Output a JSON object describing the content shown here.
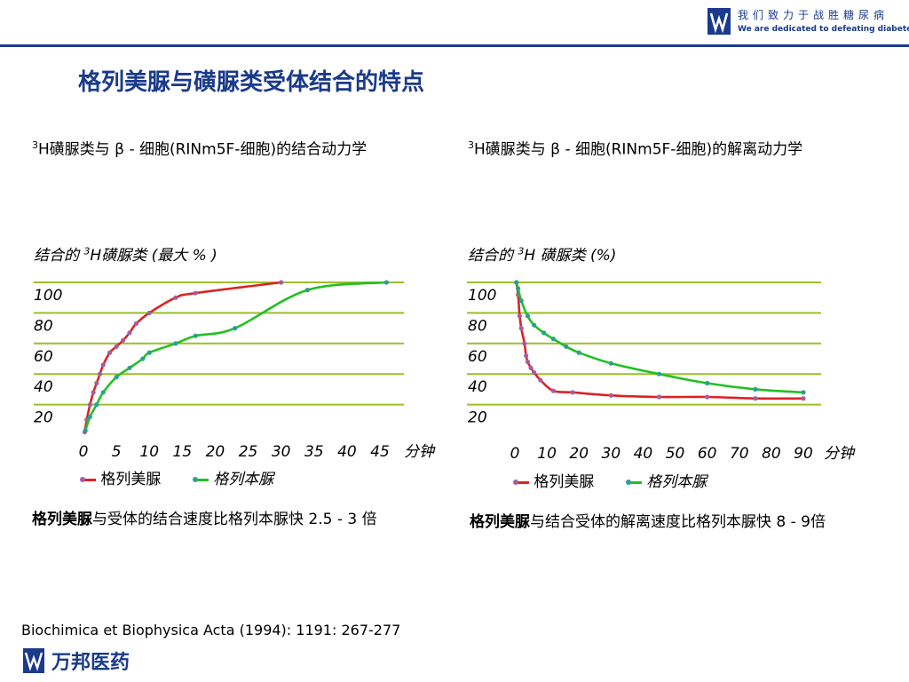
{
  "header": {
    "slogan_cn": "我们致力于战胜糖尿病",
    "slogan_en": "We are dedicated to defeating diabetes",
    "brand_color": "#1a3a8c"
  },
  "title": "格列美脲与磺脲类受体结合的特点",
  "left": {
    "title_prefix": "3",
    "title_text": "H磺脲类与 β - 细胞(RINm5F-细胞)的结合动力学",
    "ylabel_pre": "结合的 ",
    "ylabel_sup": "3",
    "ylabel_post": "H磺脲类 (最大 % )",
    "legend_a": "格列美脲",
    "legend_b": "格列本脲",
    "conclusion_bold": "格列美脲",
    "conclusion_rest": "与受体的结合速度比格列本脲快 2.5 - 3 倍"
  },
  "right": {
    "title_prefix": "3",
    "title_text": "H磺脲类与 β - 细胞(RINm5F-细胞)的解离动力学",
    "ylabel_pre": "结合的 ",
    "ylabel_sup": "3",
    "ylabel_post": "H 磺脲类 (%)",
    "legend_a": "格列美脲",
    "legend_b": "格列本脲",
    "conclusion_bold": "格列美脲",
    "conclusion_rest": "与结合受体的解离速度比格列本脲快 8 - 9倍"
  },
  "citation": "Biochimica et Biophysica Acta (1994): 1191: 267-277",
  "company": "万邦医药",
  "chart_data": [
    {
      "type": "line",
      "title": "",
      "xlabel": "分钟",
      "ylabel": "结合的 3H磺脲类 (最大 % )",
      "x_ticks": [
        "0",
        "5",
        "10",
        "15",
        "20",
        "25",
        "30",
        "35",
        "40",
        "45"
      ],
      "y_ticks": [
        "20",
        "40",
        "60",
        "80",
        "100"
      ],
      "xlim": [
        0,
        45
      ],
      "ylim": [
        0,
        100
      ],
      "grid": true,
      "colors": {
        "glimepiride_line": "#dd2222",
        "glyburide_line": "#22c022",
        "glimepiride_points": "#a060a0",
        "glyburide_points": "#2aa090",
        "grid": "#9cbf2a"
      },
      "series": [
        {
          "name": "格列美脲",
          "curve": "#dd2222",
          "points": [
            [
              0.2,
              2
            ],
            [
              0.5,
              10
            ],
            [
              1,
              20
            ],
            [
              1.5,
              28
            ],
            [
              2,
              34
            ],
            [
              2.5,
              40
            ],
            [
              3,
              46
            ],
            [
              4,
              54
            ],
            [
              5,
              58
            ],
            [
              6,
              62
            ],
            [
              7,
              67
            ],
            [
              8,
              73
            ],
            [
              10,
              80
            ],
            [
              14,
              90
            ],
            [
              17,
              93
            ],
            [
              30,
              100
            ]
          ]
        },
        {
          "name": "格列本脲",
          "curve": "#22c022",
          "points": [
            [
              0.3,
              3
            ],
            [
              1,
              12
            ],
            [
              2,
              20
            ],
            [
              3,
              28
            ],
            [
              5,
              38
            ],
            [
              7,
              44
            ],
            [
              9,
              50
            ],
            [
              10,
              54
            ],
            [
              14,
              60
            ],
            [
              17,
              65
            ],
            [
              23,
              70
            ],
            [
              34,
              95
            ],
            [
              46,
              100
            ]
          ]
        }
      ]
    },
    {
      "type": "line",
      "title": "",
      "xlabel": "分钟",
      "ylabel": "结合的 3H 磺脲类 (%)",
      "x_ticks": [
        "0",
        "10",
        "20",
        "30",
        "40",
        "50",
        "60",
        "70",
        "80",
        "90"
      ],
      "y_ticks": [
        "20",
        "40",
        "60",
        "80",
        "100"
      ],
      "xlim": [
        0,
        90
      ],
      "ylim": [
        0,
        100
      ],
      "grid": true,
      "colors": {
        "glimepiride_line": "#dd2222",
        "glyburide_line": "#22c022",
        "glimepiride_points": "#a060a0",
        "glyburide_points": "#2aa090",
        "grid": "#9cbf2a"
      },
      "series": [
        {
          "name": "格列美脲",
          "curve": "#dd2222",
          "points": [
            [
              0.5,
              100
            ],
            [
              1,
              92
            ],
            [
              1.5,
              78
            ],
            [
              2,
              70
            ],
            [
              3,
              60
            ],
            [
              3.5,
              52
            ],
            [
              4,
              48
            ],
            [
              5,
              44
            ],
            [
              6,
              41
            ],
            [
              8,
              36
            ],
            [
              12,
              29
            ],
            [
              18,
              28
            ],
            [
              30,
              26
            ],
            [
              45,
              25
            ],
            [
              60,
              25
            ],
            [
              75,
              24
            ],
            [
              90,
              24
            ]
          ]
        },
        {
          "name": "格列本脲",
          "curve": "#22c022",
          "points": [
            [
              0.5,
              100
            ],
            [
              1,
              96
            ],
            [
              2,
              88
            ],
            [
              4,
              78
            ],
            [
              6,
              72
            ],
            [
              9,
              67
            ],
            [
              12,
              63
            ],
            [
              16,
              58
            ],
            [
              20,
              54
            ],
            [
              30,
              47
            ],
            [
              45,
              40
            ],
            [
              60,
              34
            ],
            [
              75,
              30
            ],
            [
              90,
              28
            ]
          ]
        }
      ]
    }
  ]
}
